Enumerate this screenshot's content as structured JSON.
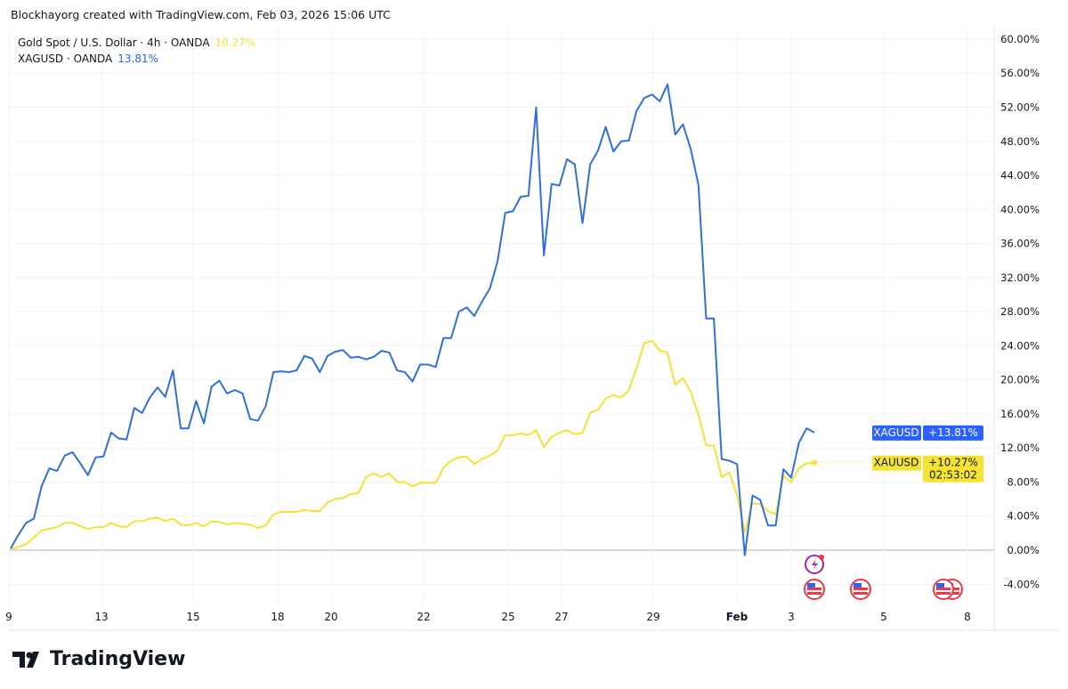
{
  "header": "Blockhayorg created with TradingView.com, Feb 03, 2026 15:06 UTC",
  "legend": [
    {
      "label": "Gold Spot / U.S. Dollar · 4h · OANDA",
      "value": "10.27%"
    },
    {
      "label": "XAGUSD · OANDA",
      "value": "13.81%"
    }
  ],
  "chart_data": {
    "type": "line",
    "ylabel": "",
    "ylim": [
      -6,
      62
    ],
    "y_ticks": [
      "60.00%",
      "56.00%",
      "52.00%",
      "48.00%",
      "44.00%",
      "40.00%",
      "36.00%",
      "32.00%",
      "28.00%",
      "24.00%",
      "20.00%",
      "16.00%",
      "12.00%",
      "8.00%",
      "4.00%",
      "0.00%",
      "-4.00%"
    ],
    "x_ticks": [
      "9",
      "13",
      "15",
      "18",
      "20",
      "22",
      "25",
      "27",
      "29",
      "Feb",
      "3",
      "5",
      "8"
    ],
    "grid": true,
    "series": [
      {
        "name": "XAGUSD",
        "color": "#2f6fe0",
        "values": [
          0.2,
          1.8,
          3.2,
          3.7,
          7.5,
          9.6,
          9.3,
          11.1,
          11.5,
          10.2,
          8.8,
          10.9,
          11.0,
          13.8,
          13.1,
          13.0,
          16.7,
          16.1,
          17.9,
          19.1,
          18.0,
          21.1,
          14.3,
          14.3,
          17.5,
          14.9,
          19.2,
          19.9,
          18.4,
          18.8,
          18.4,
          15.4,
          15.2,
          16.9,
          20.9,
          21.0,
          20.9,
          21.1,
          22.8,
          22.5,
          20.9,
          22.8,
          23.3,
          23.5,
          22.6,
          22.7,
          22.4,
          22.7,
          23.4,
          23.2,
          21.1,
          20.9,
          19.8,
          21.8,
          21.8,
          21.5,
          24.9,
          24.9,
          28.0,
          28.5,
          27.5,
          29.2,
          30.7,
          33.9,
          39.6,
          39.8,
          41.5,
          41.6,
          52.0,
          34.6,
          43.0,
          42.8,
          45.9,
          45.3,
          38.4,
          45.3,
          46.9,
          49.7,
          46.8,
          48.0,
          48.1,
          51.6,
          53.1,
          53.5,
          52.7,
          54.7,
          48.8,
          50.0,
          47.1,
          42.9,
          27.2,
          27.2,
          10.7,
          10.5,
          10.1,
          -0.6,
          6.4,
          5.9,
          2.9,
          2.9,
          9.5,
          8.5,
          12.6,
          14.3,
          13.81
        ]
      },
      {
        "name": "XAUUSD",
        "color": "#f5e333",
        "values": [
          0.1,
          0.4,
          0.7,
          1.5,
          2.3,
          2.5,
          2.7,
          3.2,
          3.2,
          2.8,
          2.5,
          2.7,
          2.7,
          3.2,
          2.8,
          2.7,
          3.4,
          3.4,
          3.7,
          3.8,
          3.4,
          3.7,
          3.0,
          2.9,
          3.2,
          2.8,
          3.4,
          3.3,
          3.0,
          3.2,
          3.1,
          3.0,
          2.6,
          2.9,
          4.2,
          4.5,
          4.5,
          4.5,
          4.7,
          4.6,
          4.6,
          5.6,
          6.0,
          6.1,
          6.6,
          6.7,
          8.6,
          9.0,
          8.6,
          9.0,
          8.0,
          8.0,
          7.5,
          7.9,
          7.9,
          7.9,
          9.7,
          10.5,
          10.9,
          11.0,
          10.1,
          10.7,
          11.1,
          11.7,
          13.5,
          13.5,
          13.7,
          13.5,
          14.1,
          12.1,
          13.3,
          13.8,
          14.1,
          13.6,
          13.8,
          16.1,
          16.5,
          17.8,
          18.2,
          17.9,
          18.8,
          21.4,
          24.3,
          24.6,
          23.4,
          23.2,
          19.4,
          20.2,
          18.6,
          15.9,
          12.3,
          12.3,
          8.6,
          9.1,
          6.5,
          2.1,
          5.5,
          5.4,
          4.6,
          4.2,
          8.7,
          8.0,
          9.6,
          10.2,
          10.27
        ]
      }
    ],
    "price_labels": [
      {
        "symbol": "XAGUSD",
        "value": "+13.81%",
        "color": "#2962ff"
      },
      {
        "symbol": "XAUUSD",
        "value": "+10.27%",
        "countdown": "02:53:02",
        "color": "#f5e333"
      }
    ],
    "events": [
      "lightning-icon",
      "us-flag-icon",
      "us-flag-icon",
      "us-flag-icon",
      "us-flag-icon"
    ]
  },
  "branding": "TradingView"
}
